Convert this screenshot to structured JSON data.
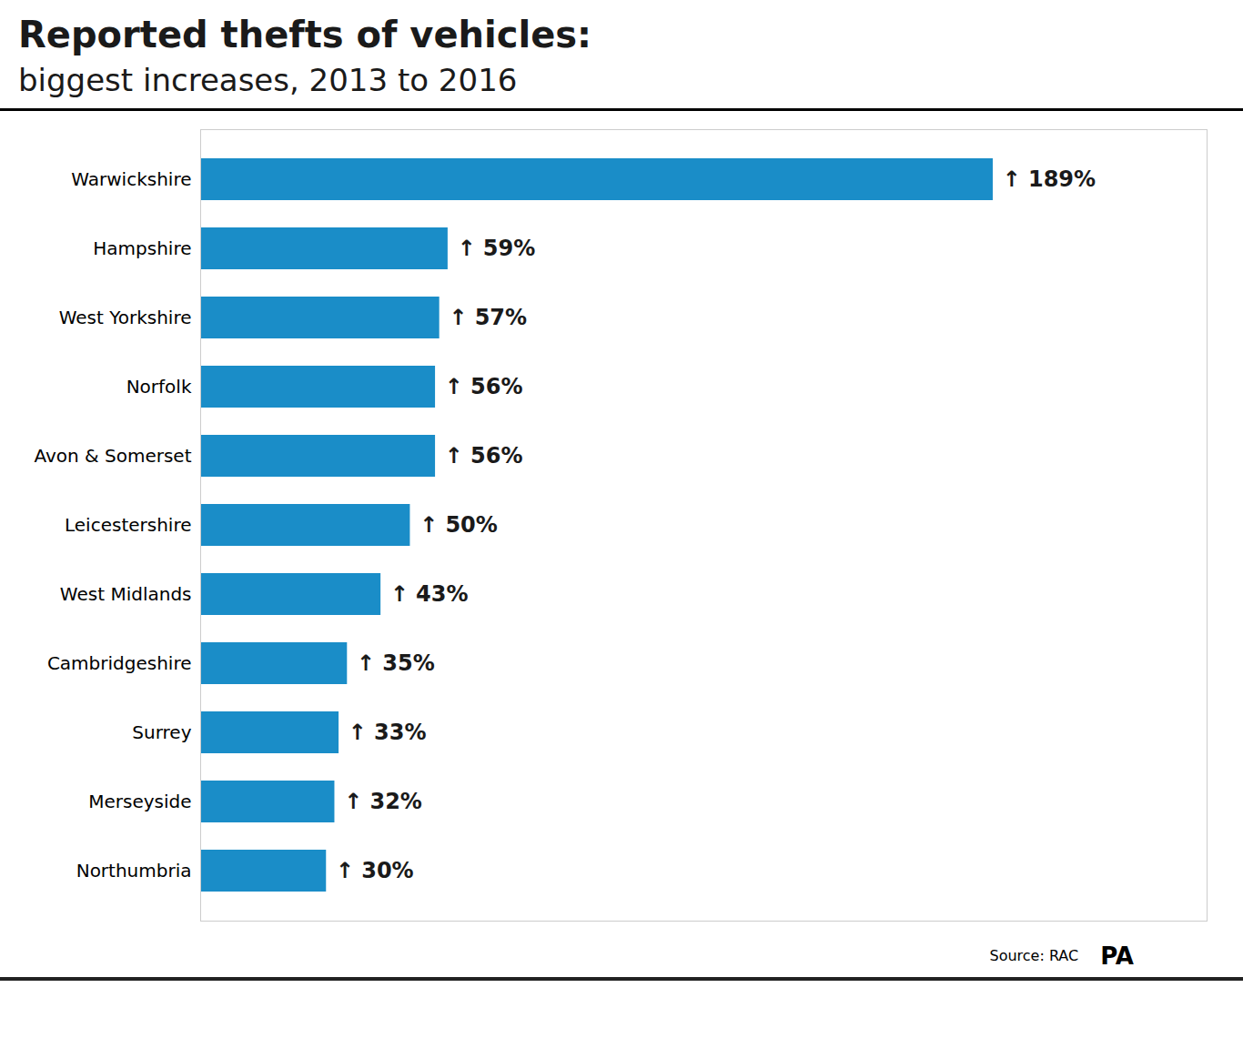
{
  "chart_data": {
    "type": "bar",
    "orientation": "horizontal",
    "title": "Reported thefts of vehicles:",
    "subtitle": "biggest increases, 2013 to 2016",
    "categories": [
      "Warwickshire",
      "Hampshire",
      "West Yorkshire",
      "Norfolk",
      "Avon & Somerset",
      "Leicestershire",
      "West Midlands",
      "Cambridgeshire",
      "Surrey",
      "Merseyside",
      "Northumbria"
    ],
    "values": [
      189,
      59,
      57,
      56,
      56,
      50,
      43,
      35,
      33,
      32,
      30
    ],
    "value_labels": [
      "↑ 189%",
      "↑ 59%",
      "↑ 57%",
      "↑ 56%",
      "↑ 56%",
      "↑ 50%",
      "↑ 43%",
      "↑ 35%",
      "↑ 33%",
      "↑ 32%",
      "↑ 30%"
    ],
    "data_labels": true,
    "color": "#1a8dc8",
    "xlim": [
      0,
      240
    ],
    "tick_labels": "y",
    "grid": false,
    "annotations": [
      "Source: RAC",
      "PA"
    ]
  }
}
